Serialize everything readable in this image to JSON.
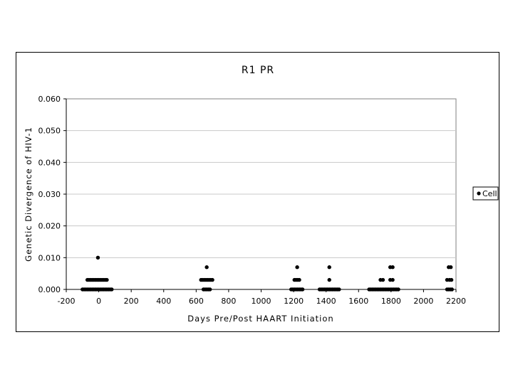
{
  "chart_data": {
    "type": "scatter",
    "title": "R1  PR",
    "xlabel": "Days   Pre/Post   HAART   Initiation",
    "ylabel": "Genetic   Divergence   of   HIV-1",
    "xlim": [
      -200,
      2200
    ],
    "ylim": [
      0,
      0.06
    ],
    "x_ticks": [
      -200,
      0,
      200,
      400,
      600,
      800,
      1000,
      1200,
      1400,
      1600,
      1800,
      2000,
      2200
    ],
    "x_tick_labels": [
      "-200",
      "0",
      "200",
      "400",
      "600",
      "800",
      "1000",
      "1200",
      "1400",
      "1600",
      "1800",
      "2000",
      "2200"
    ],
    "y_ticks": [
      0,
      0.01,
      0.02,
      0.03,
      0.04,
      0.05,
      0.06
    ],
    "y_tick_labels": [
      "0.000",
      "0.010",
      "0.020",
      "0.030",
      "0.040",
      "0.050",
      "0.060"
    ],
    "grid": "horizontal",
    "legend_position": "right",
    "marker_color": "#000000",
    "series": [
      {
        "name": "Cell",
        "points": [
          [
            -100,
            0
          ],
          [
            -90,
            0
          ],
          [
            -80,
            0
          ],
          [
            -70,
            0
          ],
          [
            -60,
            0
          ],
          [
            -50,
            0
          ],
          [
            -40,
            0
          ],
          [
            -30,
            0
          ],
          [
            -20,
            0
          ],
          [
            -10,
            0
          ],
          [
            0,
            0
          ],
          [
            10,
            0
          ],
          [
            20,
            0
          ],
          [
            30,
            0
          ],
          [
            40,
            0
          ],
          [
            50,
            0
          ],
          [
            60,
            0
          ],
          [
            70,
            0
          ],
          [
            80,
            0
          ],
          [
            -70,
            0.003
          ],
          [
            -60,
            0.003
          ],
          [
            -50,
            0.003
          ],
          [
            -40,
            0.003
          ],
          [
            -30,
            0.003
          ],
          [
            -20,
            0.003
          ],
          [
            -10,
            0.003
          ],
          [
            0,
            0.003
          ],
          [
            10,
            0.003
          ],
          [
            20,
            0.003
          ],
          [
            30,
            0.003
          ],
          [
            40,
            0.003
          ],
          [
            50,
            0.003
          ],
          [
            -5,
            0.01
          ],
          [
            645,
            0
          ],
          [
            655,
            0
          ],
          [
            665,
            0
          ],
          [
            675,
            0
          ],
          [
            685,
            0
          ],
          [
            630,
            0.003
          ],
          [
            640,
            0.003
          ],
          [
            650,
            0.003
          ],
          [
            660,
            0.003
          ],
          [
            670,
            0.003
          ],
          [
            680,
            0.003
          ],
          [
            690,
            0.003
          ],
          [
            700,
            0.003
          ],
          [
            665,
            0.007
          ],
          [
            1185,
            0
          ],
          [
            1195,
            0
          ],
          [
            1205,
            0
          ],
          [
            1215,
            0
          ],
          [
            1225,
            0
          ],
          [
            1235,
            0
          ],
          [
            1245,
            0
          ],
          [
            1255,
            0
          ],
          [
            1205,
            0.003
          ],
          [
            1215,
            0.003
          ],
          [
            1225,
            0.003
          ],
          [
            1235,
            0.003
          ],
          [
            1222,
            0.007
          ],
          [
            1360,
            0
          ],
          [
            1370,
            0
          ],
          [
            1380,
            0
          ],
          [
            1390,
            0
          ],
          [
            1400,
            0
          ],
          [
            1410,
            0
          ],
          [
            1420,
            0
          ],
          [
            1430,
            0
          ],
          [
            1440,
            0
          ],
          [
            1450,
            0
          ],
          [
            1460,
            0
          ],
          [
            1470,
            0
          ],
          [
            1480,
            0
          ],
          [
            1420,
            0.003
          ],
          [
            1420,
            0.007
          ],
          [
            1665,
            0
          ],
          [
            1675,
            0
          ],
          [
            1685,
            0
          ],
          [
            1695,
            0
          ],
          [
            1705,
            0
          ],
          [
            1715,
            0
          ],
          [
            1725,
            0
          ],
          [
            1735,
            0
          ],
          [
            1745,
            0
          ],
          [
            1755,
            0
          ],
          [
            1765,
            0
          ],
          [
            1775,
            0
          ],
          [
            1785,
            0
          ],
          [
            1795,
            0
          ],
          [
            1805,
            0
          ],
          [
            1815,
            0
          ],
          [
            1825,
            0
          ],
          [
            1835,
            0
          ],
          [
            1845,
            0
          ],
          [
            1735,
            0.003
          ],
          [
            1750,
            0.003
          ],
          [
            1795,
            0.003
          ],
          [
            1810,
            0.003
          ],
          [
            1795,
            0.007
          ],
          [
            1810,
            0.007
          ],
          [
            2145,
            0
          ],
          [
            2155,
            0
          ],
          [
            2165,
            0
          ],
          [
            2175,
            0
          ],
          [
            2145,
            0.003
          ],
          [
            2160,
            0.003
          ],
          [
            2172,
            0.003
          ],
          [
            2155,
            0.007
          ],
          [
            2168,
            0.007
          ]
        ]
      }
    ]
  }
}
